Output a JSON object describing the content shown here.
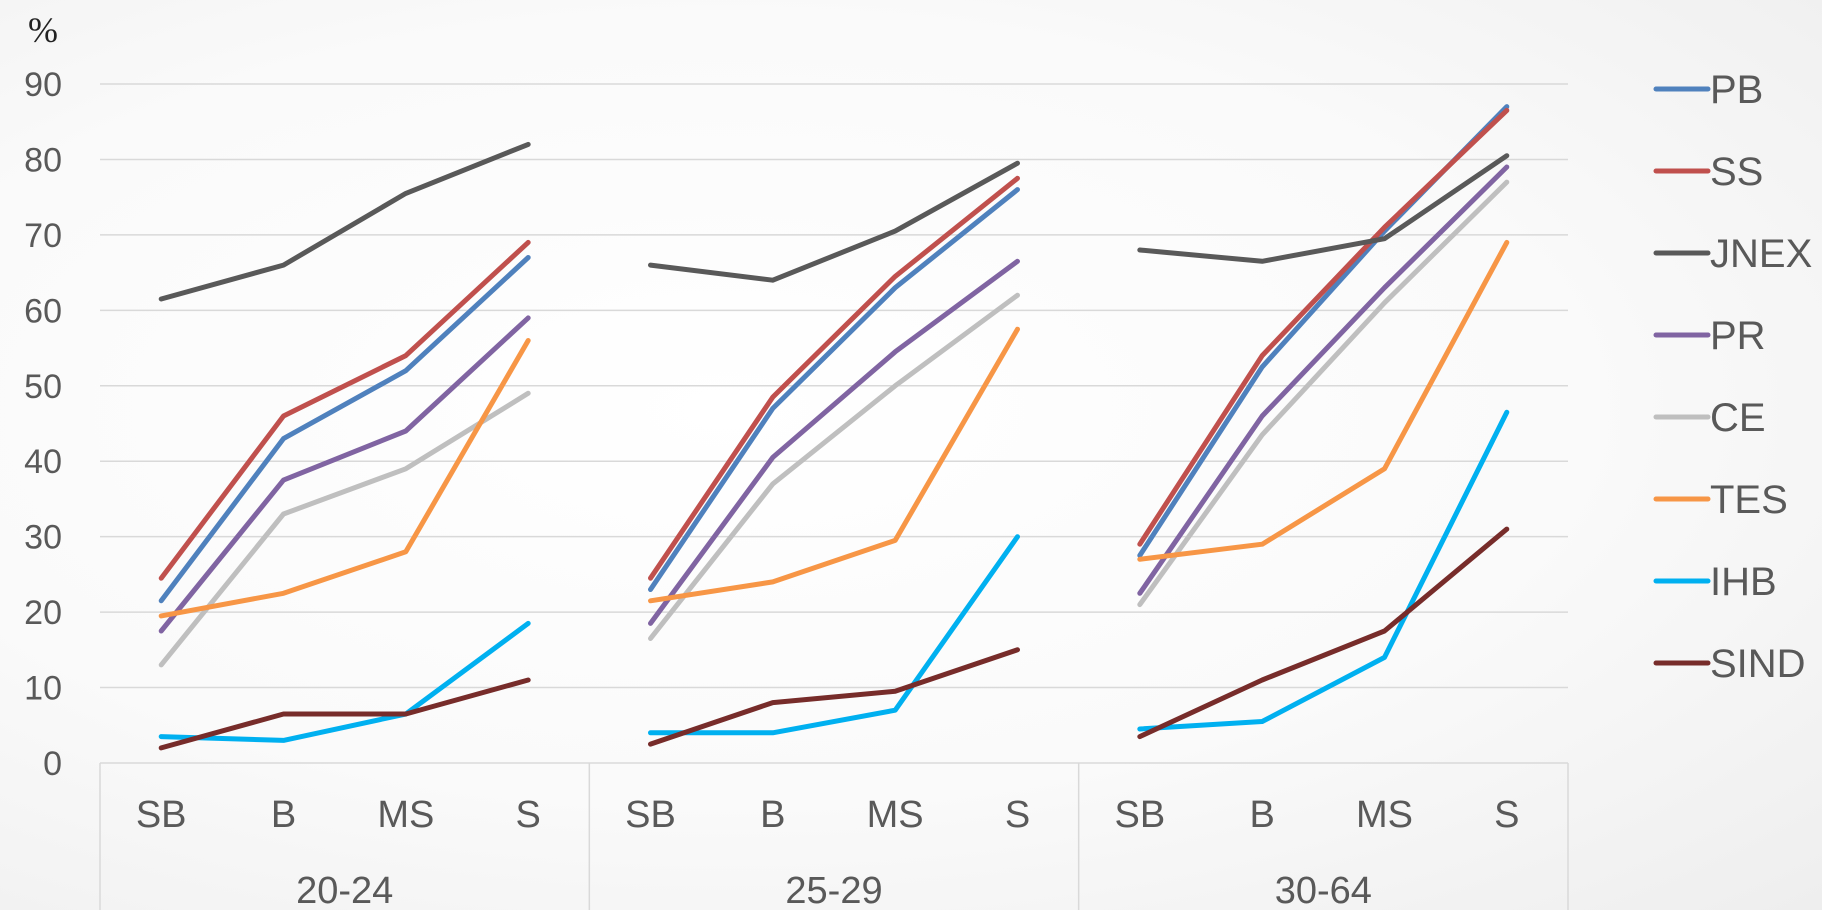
{
  "chart_data": {
    "type": "line",
    "ylabel": "%",
    "ylim": [
      0,
      90
    ],
    "yticks": [
      0,
      10,
      20,
      30,
      40,
      50,
      60,
      70,
      80,
      90
    ],
    "grid": true,
    "legend_position": "right",
    "groups": [
      "20-24",
      "25-29",
      "30-64"
    ],
    "categories": [
      "SB",
      "B",
      "MS",
      "S"
    ],
    "series": [
      {
        "name": "PB",
        "color": "#4f81bd",
        "values": [
          [
            21.5,
            43,
            52,
            67
          ],
          [
            23,
            47,
            63,
            76
          ],
          [
            27.5,
            52.5,
            70.5,
            87
          ]
        ]
      },
      {
        "name": "SS",
        "color": "#c0504d",
        "values": [
          [
            24.5,
            46,
            54,
            69
          ],
          [
            24.5,
            48.5,
            64.5,
            77.5
          ],
          [
            29,
            54,
            71,
            86.5
          ]
        ]
      },
      {
        "name": "JNEX",
        "color": "#595959",
        "values": [
          [
            61.5,
            66,
            75.5,
            82
          ],
          [
            66,
            64,
            70.5,
            79.5
          ],
          [
            68,
            66.5,
            69.5,
            80.5
          ]
        ]
      },
      {
        "name": "PR",
        "color": "#8064a2",
        "values": [
          [
            17.5,
            37.5,
            44,
            59
          ],
          [
            18.5,
            40.5,
            54.5,
            66.5
          ],
          [
            22.5,
            46,
            63,
            79
          ]
        ]
      },
      {
        "name": "CE",
        "color": "#bfbfbf",
        "values": [
          [
            13,
            33,
            39,
            49
          ],
          [
            16.5,
            37,
            50,
            62
          ],
          [
            21,
            43.5,
            61,
            77
          ]
        ]
      },
      {
        "name": "TES",
        "color": "#f79646",
        "values": [
          [
            19.5,
            22.5,
            28,
            56
          ],
          [
            21.5,
            24,
            29.5,
            57.5
          ],
          [
            27,
            29,
            39,
            69
          ]
        ]
      },
      {
        "name": "IHB",
        "color": "#00b0f0",
        "values": [
          [
            3.5,
            3,
            6.5,
            18.5
          ],
          [
            4,
            4,
            7,
            30
          ],
          [
            4.5,
            5.5,
            14,
            46.5
          ]
        ]
      },
      {
        "name": "SIND",
        "color": "#772c2a",
        "values": [
          [
            2,
            6.5,
            6.5,
            11
          ],
          [
            2.5,
            8,
            9.5,
            15
          ],
          [
            3.5,
            11,
            17.5,
            31
          ]
        ]
      }
    ]
  }
}
